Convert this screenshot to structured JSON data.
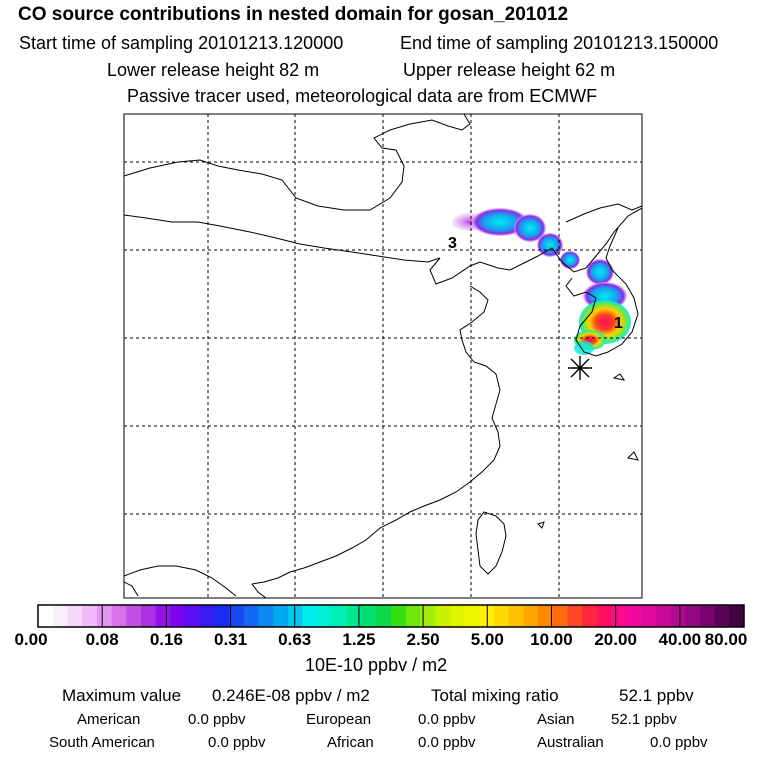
{
  "header": {
    "title": "CO  source contributions in nested domain for gosan_201012",
    "start_time": "Start time of sampling 20101213.120000",
    "end_time": "End time of sampling 20101213.150000",
    "lower_release": "Lower release height   82 m",
    "upper_release": "Upper release height   62 m",
    "tracer_note": "Passive tracer used, meteorological data are from ECMWF"
  },
  "map": {
    "labels": {
      "one": "1",
      "three": "3"
    }
  },
  "scale": {
    "tick_labels": [
      "0.00",
      "0.08",
      "0.16",
      "0.31",
      "0.63",
      "1.25",
      "2.50",
      "5.00",
      "10.00",
      "20.00",
      "40.00",
      "80.00"
    ],
    "colors": [
      "#ffffff",
      "#fbeefc",
      "#f5d8fa",
      "#eebaf5",
      "#e596f1",
      "#d971ea",
      "#c34fe6",
      "#ad31e2",
      "#9612e8",
      "#7a05ef",
      "#5a10f2",
      "#3a1bf5",
      "#1e2bf5",
      "#1849f5",
      "#1468f3",
      "#0c88f0",
      "#00a8ee",
      "#00c8ee",
      "#00eeee",
      "#00f0d0",
      "#00eeb0",
      "#00e890",
      "#00e070",
      "#10d848",
      "#30e010",
      "#70e810",
      "#a0ec10",
      "#c8f000",
      "#e0f400",
      "#f0f800",
      "#ffee00",
      "#ffd800",
      "#ffc000",
      "#ffa400",
      "#ff8800",
      "#ff6c10",
      "#ff4828",
      "#ff2840",
      "#ff1060",
      "#ff0a88",
      "#f00aa0",
      "#e00aa0",
      "#cc0898",
      "#b00890",
      "#940880",
      "#780670",
      "#5a0458",
      "#400340"
    ],
    "units": "10E-10 ppbv / m2"
  },
  "footer": {
    "max_label": "Maximum value",
    "max_value": "0.246E-08 ppbv / m2",
    "total_label": "Total mixing ratio",
    "total_value": "52.1 ppbv",
    "regions": [
      {
        "name": "American",
        "value": "0.0 ppbv"
      },
      {
        "name": "European",
        "value": "0.0 ppbv"
      },
      {
        "name": "Asian",
        "value": "52.1 ppbv"
      },
      {
        "name": "South American",
        "value": "0.0 ppbv"
      },
      {
        "name": "African",
        "value": "0.0 ppbv"
      },
      {
        "name": "Australian",
        "value": "0.0 ppbv"
      }
    ]
  }
}
